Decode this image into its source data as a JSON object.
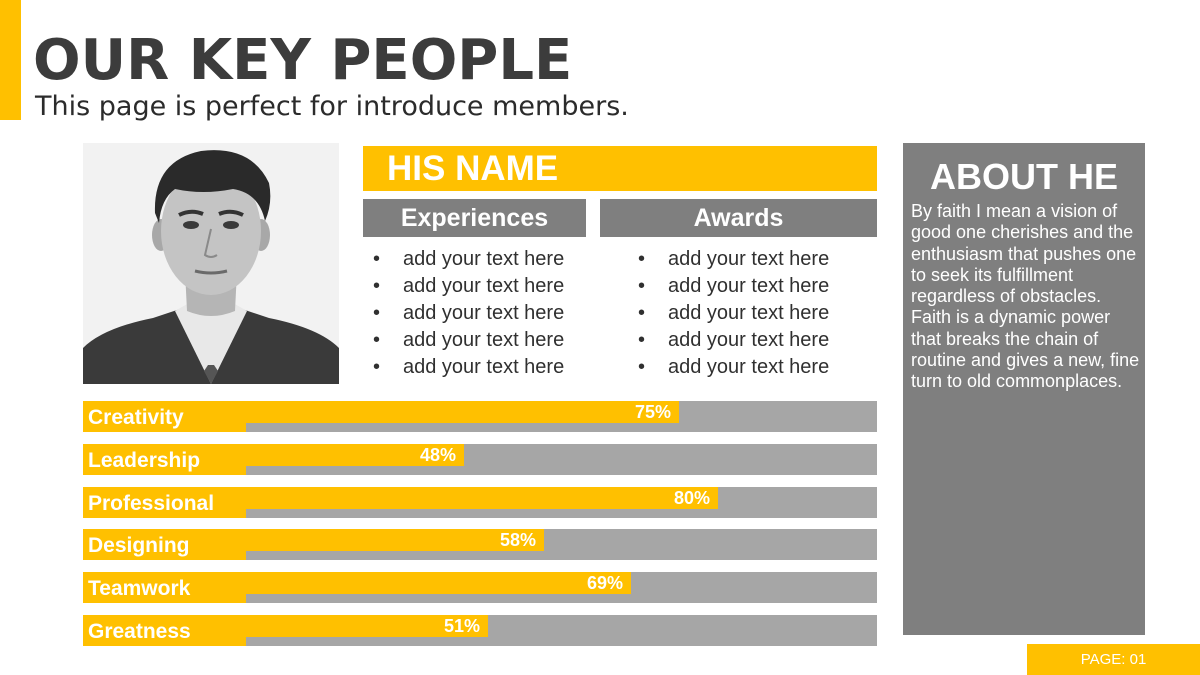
{
  "header": {
    "title": "OUR KEY PEOPLE",
    "subtitle": "This page is perfect for introduce members."
  },
  "profile": {
    "name": "HIS NAME",
    "experiences_label": "Experiences",
    "awards_label": "Awards",
    "experiences": [
      "add your text here",
      "add your text here",
      "add your text here",
      "add your text here",
      "add your text here"
    ],
    "awards": [
      "add your text here",
      "add your text here",
      "add your text here",
      "add your text here",
      "add your text here"
    ]
  },
  "about": {
    "title": "ABOUT HE",
    "text": "By faith I mean a vision of good one cherishes and the enthusiasm that pushes one to seek its fulfillment regardless of obstacles. Faith is a dynamic power that breaks the chain of routine and gives a new, fine turn to old commonplaces."
  },
  "skills": [
    {
      "label": "Creativity",
      "percent_label": "75%",
      "value": 0.75
    },
    {
      "label": "Leadership",
      "percent_label": "48%",
      "value": 0.48
    },
    {
      "label": "Professional",
      "percent_label": "80%",
      "value": 0.8
    },
    {
      "label": "Designing",
      "percent_label": "58%",
      "value": 0.58
    },
    {
      "label": "Teamwork",
      "percent_label": "69%",
      "value": 0.69
    },
    {
      "label": "Greatness",
      "percent_label": "51%",
      "value": 0.51
    }
  ],
  "footer": {
    "page_label": "PAGE: 01"
  },
  "colors": {
    "accent": "#FFC000",
    "panel_gray": "#7f7f7f",
    "track_gray": "#a6a6a6",
    "title_text": "#3c3c3c"
  }
}
